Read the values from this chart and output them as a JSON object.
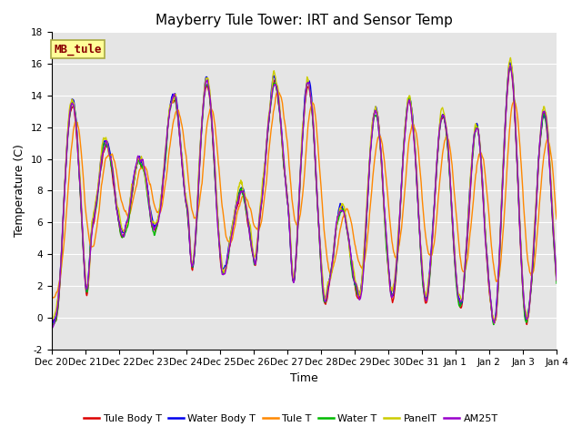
{
  "title": "Mayberry Tule Tower: IRT and Sensor Temp",
  "xlabel": "Time",
  "ylabel": "Temperature (C)",
  "ylim": [
    -2,
    18
  ],
  "yticks": [
    -2,
    0,
    2,
    4,
    6,
    8,
    10,
    12,
    14,
    16,
    18
  ],
  "bg_color": "#e5e5e5",
  "fig_color": "#ffffff",
  "grid_color": "#ffffff",
  "annotation_text": "MB_tule",
  "annotation_fgcolor": "#8b0000",
  "annotation_bgcolor": "#ffff99",
  "annotation_edgecolor": "#aaaa44",
  "series": [
    {
      "label": "Tule Body T",
      "color": "#dd0000",
      "lw": 1.0
    },
    {
      "label": "Water Body T",
      "color": "#0000ee",
      "lw": 1.0
    },
    {
      "label": "Tule T",
      "color": "#ff8800",
      "lw": 1.0
    },
    {
      "label": "Water T",
      "color": "#00bb00",
      "lw": 1.0
    },
    {
      "label": "PanelT",
      "color": "#cccc00",
      "lw": 1.0
    },
    {
      "label": "AM25T",
      "color": "#9900cc",
      "lw": 1.0
    }
  ],
  "x_tick_labels": [
    "Dec 20",
    "Dec 21",
    "Dec 22",
    "Dec 23",
    "Dec 24",
    "Dec 25",
    "Dec 26",
    "Dec 27",
    "Dec 28",
    "Dec 29",
    "Dec 30",
    "Dec 31",
    "Jan 1",
    "Jan 2",
    "Jan 3",
    "Jan 4"
  ],
  "n_points": 900,
  "tick_fontsize": 7.5,
  "title_fontsize": 11,
  "label_fontsize": 9,
  "legend_fontsize": 8
}
